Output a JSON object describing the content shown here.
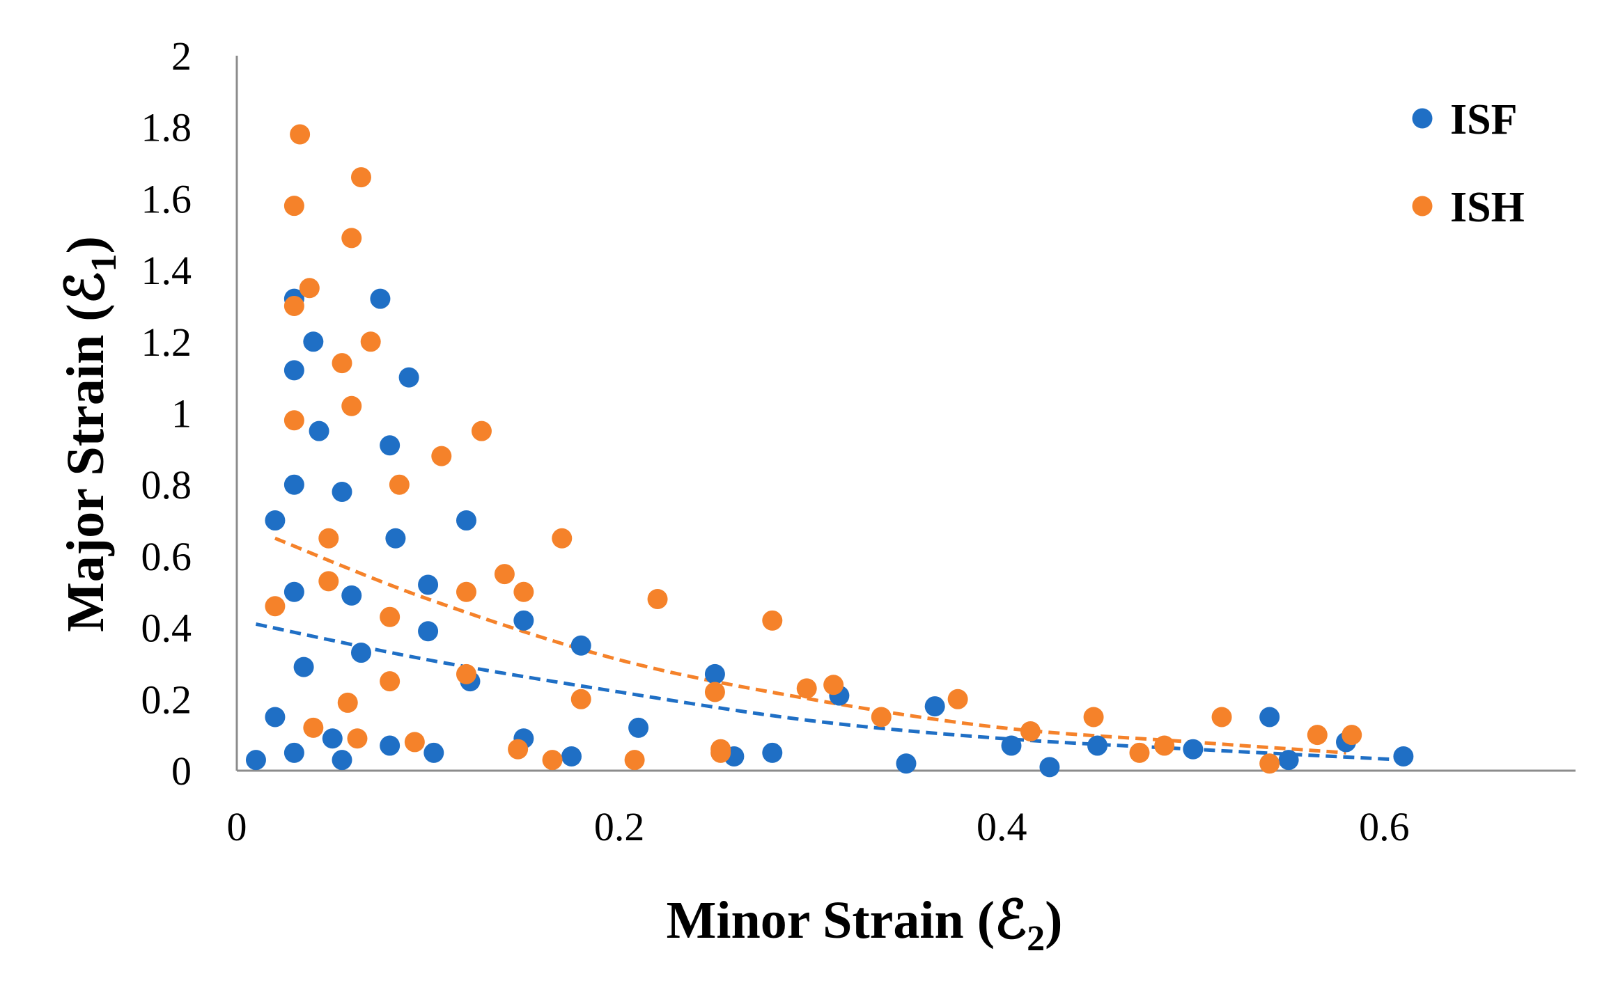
{
  "chart_data": {
    "type": "scatter",
    "title": "",
    "xlabel": "Minor Strain (ℰ",
    "xlabel_sub": "2",
    "xlabel_close": ")",
    "ylabel": "Major Strain (ℰ",
    "ylabel_sub": "1",
    "ylabel_close": ")",
    "xlim": [
      0,
      0.7
    ],
    "ylim": [
      0,
      2
    ],
    "xticks": [
      0,
      0.2,
      0.4,
      0.6
    ],
    "xtick_labels": [
      "0",
      "0.2",
      "0.4",
      "0.6"
    ],
    "yticks": [
      0,
      0.2,
      0.4,
      0.6,
      0.8,
      1,
      1.2,
      1.4,
      1.6,
      1.8,
      2
    ],
    "ytick_labels": [
      "0",
      "0.2",
      "0.4",
      "0.6",
      "0.8",
      "1",
      "1.2",
      "1.4",
      "1.6",
      "1.8",
      "2"
    ],
    "grid": false,
    "legend_position": "top-right",
    "series": [
      {
        "name": "ISF",
        "color": "#1f6fc5",
        "x": [
          0.01,
          0.02,
          0.02,
          0.03,
          0.03,
          0.03,
          0.03,
          0.03,
          0.035,
          0.04,
          0.043,
          0.05,
          0.055,
          0.055,
          0.06,
          0.065,
          0.075,
          0.08,
          0.08,
          0.083,
          0.09,
          0.1,
          0.1,
          0.103,
          0.12,
          0.122,
          0.15,
          0.15,
          0.175,
          0.18,
          0.21,
          0.25,
          0.26,
          0.28,
          0.315,
          0.35,
          0.365,
          0.405,
          0.425,
          0.45,
          0.5,
          0.54,
          0.55,
          0.58,
          0.61
        ],
        "y": [
          0.03,
          0.7,
          0.15,
          1.32,
          1.12,
          0.8,
          0.5,
          0.05,
          0.29,
          1.2,
          0.95,
          0.09,
          0.78,
          0.03,
          0.49,
          0.33,
          1.32,
          0.91,
          0.07,
          0.65,
          1.1,
          0.52,
          0.39,
          0.05,
          0.7,
          0.25,
          0.42,
          0.09,
          0.04,
          0.35,
          0.12,
          0.27,
          0.04,
          0.05,
          0.21,
          0.02,
          0.18,
          0.07,
          0.01,
          0.07,
          0.06,
          0.15,
          0.03,
          0.08,
          0.04
        ]
      },
      {
        "name": "ISH",
        "color": "#f5822a",
        "x": [
          0.02,
          0.03,
          0.03,
          0.03,
          0.033,
          0.038,
          0.04,
          0.048,
          0.048,
          0.055,
          0.058,
          0.06,
          0.06,
          0.063,
          0.065,
          0.07,
          0.08,
          0.08,
          0.085,
          0.093,
          0.107,
          0.12,
          0.12,
          0.128,
          0.14,
          0.147,
          0.15,
          0.165,
          0.17,
          0.18,
          0.208,
          0.22,
          0.25,
          0.253,
          0.253,
          0.28,
          0.298,
          0.312,
          0.337,
          0.377,
          0.415,
          0.448,
          0.472,
          0.485,
          0.515,
          0.54,
          0.565,
          0.583
        ],
        "y": [
          0.46,
          1.58,
          1.3,
          0.98,
          1.78,
          1.35,
          0.12,
          0.65,
          0.53,
          1.14,
          0.19,
          1.49,
          1.02,
          0.09,
          1.66,
          1.2,
          0.43,
          0.25,
          0.8,
          0.08,
          0.88,
          0.5,
          0.27,
          0.95,
          0.55,
          0.06,
          0.5,
          0.03,
          0.65,
          0.2,
          0.03,
          0.48,
          0.22,
          0.06,
          0.05,
          0.42,
          0.23,
          0.24,
          0.15,
          0.2,
          0.11,
          0.15,
          0.05,
          0.07,
          0.15,
          0.02,
          0.1,
          0.1
        ]
      }
    ],
    "trendlines": [
      {
        "series": "ISF",
        "style": "dashed",
        "color": "#1f6fc5",
        "x": [
          0.01,
          0.1,
          0.2,
          0.3,
          0.4,
          0.5,
          0.61
        ],
        "y": [
          0.41,
          0.31,
          0.22,
          0.14,
          0.09,
          0.06,
          0.03
        ]
      },
      {
        "series": "ISH",
        "style": "dashed",
        "color": "#f5822a",
        "x": [
          0.02,
          0.1,
          0.2,
          0.3,
          0.4,
          0.5,
          0.58
        ],
        "y": [
          0.65,
          0.48,
          0.31,
          0.2,
          0.12,
          0.08,
          0.05
        ]
      }
    ]
  }
}
